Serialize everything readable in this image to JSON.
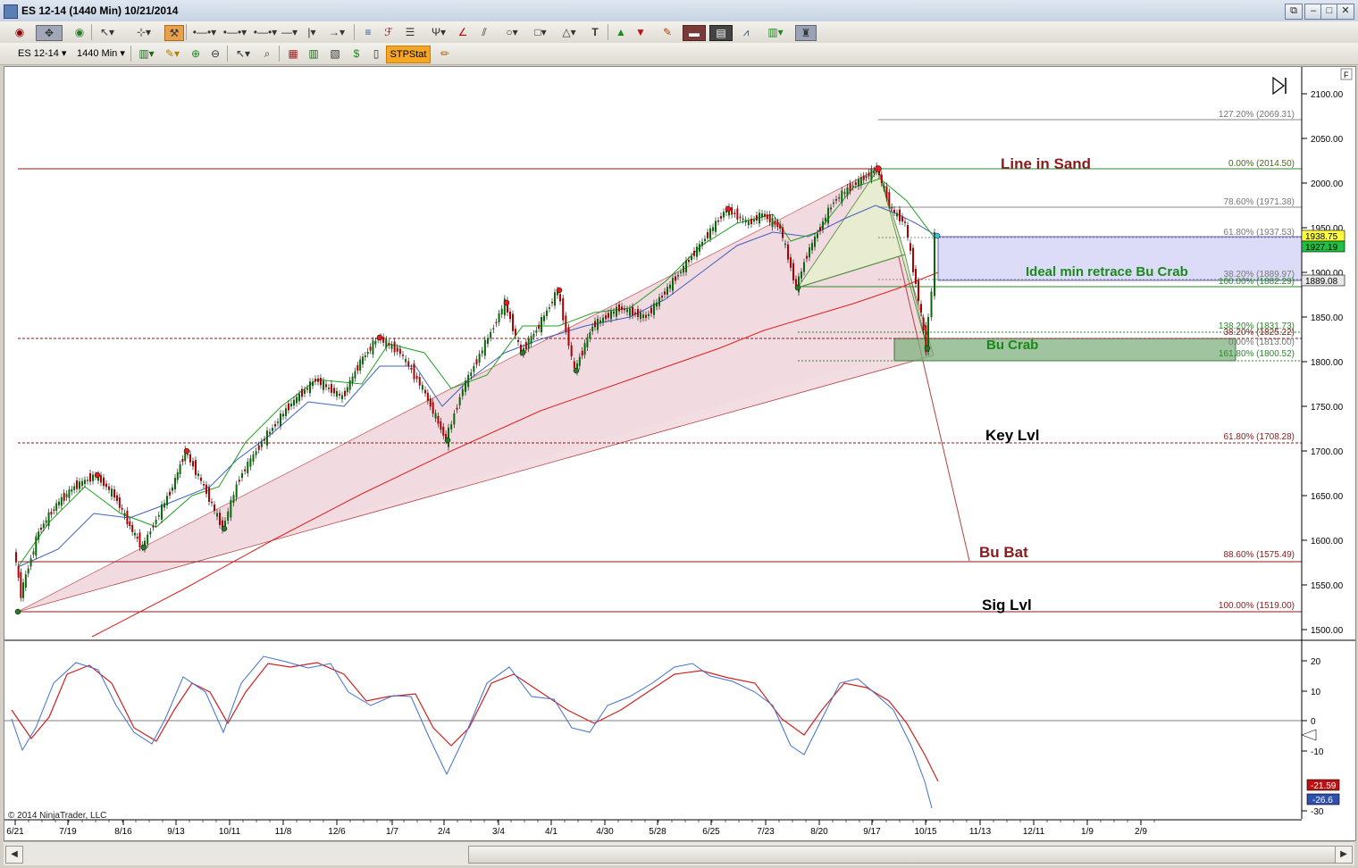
{
  "window": {
    "title": "ES 12-14 (1440 Min)  10/21/2014",
    "btn_restore_all": "⧉",
    "btn_min": "–",
    "btn_max": "□",
    "btn_close": "✕"
  },
  "toolbar2": {
    "instrument": "ES 12-14",
    "interval": "1440 Min",
    "stpstat": "STPStat"
  },
  "chart": {
    "price_axis": [
      "2100.00",
      "2050.00",
      "2000.00",
      "1950.00",
      "1900.00",
      "1850.00",
      "1800.00",
      "1750.00",
      "1700.00",
      "1650.00",
      "1600.00",
      "1550.00",
      "1500.00"
    ],
    "price_badges": {
      "last": "1938.75",
      "ma": "1927.19",
      "level": "1889.08"
    },
    "fib_labels": [
      "127.20% (2069.31)",
      "0.00% (2014.50)",
      "78.60% (1971.38)",
      "61.80% (1937.53)",
      "38.20% (1889.97)",
      "100.00% (1882.29)",
      "138.20% (1831.73)",
      "38.20% (1825.22)",
      "0.00% (1813.00)",
      "161.80% (1800.52)",
      "61.80% (1708.28)",
      "88.60% (1575.49)",
      "100.00% (1519.00)"
    ],
    "annotations": {
      "line_in_sand": "Line in Sand",
      "ideal_retrace": "Ideal min retrace Bu Crab",
      "bu_crab": "Bu Crab",
      "key_lvl": "Key Lvl",
      "bu_bat": "Bu Bat",
      "sig_lvl": "Sig Lvl"
    },
    "osc_axis": [
      "20",
      "10",
      "0",
      "-10",
      "-30"
    ],
    "osc_badges": {
      "red": "-21.59",
      "blue": "-26.6"
    },
    "x_axis": [
      "6/21",
      "7/19",
      "8/16",
      "9/13",
      "10/11",
      "11/8",
      "12/6",
      "1/7",
      "2/4",
      "3/4",
      "4/1",
      "4/30",
      "5/28",
      "6/25",
      "7/23",
      "8/20",
      "9/17",
      "10/15",
      "11/13",
      "12/11",
      "1/9",
      "2/9"
    ],
    "copyright": "© 2014 NinjaTrader, LLC",
    "f_button": "F"
  },
  "colors": {
    "dark_red": "#8b1a1a",
    "green_text": "#1a8a1a",
    "bull": "#0a6a0a",
    "bear": "#b00000",
    "blue_zone": "#dcdcf8",
    "green_zone": "#7fb07f"
  }
}
